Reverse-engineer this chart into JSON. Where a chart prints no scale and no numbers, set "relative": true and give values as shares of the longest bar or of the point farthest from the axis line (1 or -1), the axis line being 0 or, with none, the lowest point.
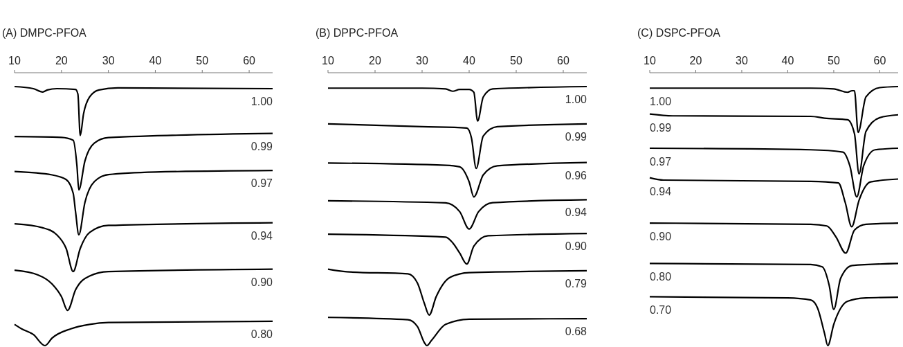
{
  "chart_data": [
    {
      "type": "line",
      "title": "(A) DMPC-PFOA",
      "relative": true,
      "xlim": [
        10,
        65
      ],
      "xticks": [
        10,
        20,
        30,
        40,
        50,
        60
      ],
      "tick_labels": "x",
      "grid": false,
      "marker": "none",
      "line_style": "solid",
      "series": [
        {
          "name": "1.00",
          "color": "#000000",
          "x": [
            10,
            14,
            16,
            17,
            19,
            23,
            23.5,
            24,
            24.7,
            26,
            28,
            32,
            65
          ],
          "values": [
            1.0,
            0.992,
            0.979,
            0.987,
            0.992,
            0.989,
            0.971,
            0.811,
            0.894,
            0.96,
            0.987,
            0.995,
            0.992
          ]
        },
        {
          "name": "0.99",
          "color": "#000000",
          "x": [
            10,
            20,
            22.5,
            23.3,
            23.7,
            25,
            27,
            30,
            65
          ],
          "values": [
            0.807,
            0.804,
            0.793,
            0.694,
            0.601,
            0.713,
            0.782,
            0.803,
            0.819
          ]
        },
        {
          "name": "0.97",
          "color": "#000000",
          "x": [
            10,
            18,
            21,
            22.5,
            23,
            23.7,
            25,
            27,
            30,
            40,
            65
          ],
          "values": [
            0.672,
            0.659,
            0.641,
            0.588,
            0.517,
            0.428,
            0.553,
            0.633,
            0.66,
            0.67,
            0.676
          ]
        },
        {
          "name": "0.94",
          "color": "#000000",
          "x": [
            10,
            16,
            19,
            21,
            22.5,
            24,
            26,
            30,
            65
          ],
          "values": [
            0.47,
            0.455,
            0.428,
            0.375,
            0.286,
            0.375,
            0.437,
            0.464,
            0.474
          ]
        },
        {
          "name": "0.90",
          "color": "#000000",
          "x": [
            10,
            15,
            18,
            20,
            21.3,
            23,
            26,
            30,
            65
          ],
          "values": [
            0.291,
            0.273,
            0.238,
            0.189,
            0.136,
            0.215,
            0.269,
            0.286,
            0.295
          ]
        },
        {
          "name": "0.80",
          "color": "#000000",
          "x": [
            10,
            11.5,
            14,
            16.5,
            18,
            22,
            26,
            30,
            65
          ],
          "values": [
            0.082,
            0.065,
            0.043,
            0,
            0.029,
            0.065,
            0.082,
            0.089,
            0.094
          ]
        }
      ]
    },
    {
      "type": "line",
      "title": "(B) DPPC-PFOA",
      "relative": true,
      "xlim": [
        10,
        65
      ],
      "xticks": [
        10,
        20,
        30,
        40,
        50,
        60
      ],
      "tick_labels": "x",
      "grid": false,
      "marker": "none",
      "line_style": "solid",
      "series": [
        {
          "name": "1.00",
          "color": "#000000",
          "x": [
            10,
            30,
            35,
            36.5,
            38,
            40,
            41,
            41.8,
            43,
            45,
            65
          ],
          "values": [
            0.994,
            0.994,
            0.991,
            0.982,
            0.989,
            0.989,
            0.978,
            0.867,
            0.96,
            0.991,
            1.0
          ]
        },
        {
          "name": "0.99",
          "color": "#000000",
          "x": [
            10,
            30,
            39.5,
            40.5,
            41.5,
            43,
            46,
            65
          ],
          "values": [
            0.856,
            0.845,
            0.84,
            0.801,
            0.684,
            0.809,
            0.845,
            0.856
          ]
        },
        {
          "name": "0.96",
          "color": "#000000",
          "x": [
            10,
            35,
            38,
            40,
            41,
            43,
            46,
            65
          ],
          "values": [
            0.705,
            0.696,
            0.69,
            0.632,
            0.574,
            0.659,
            0.694,
            0.707
          ]
        },
        {
          "name": "0.94",
          "color": "#000000",
          "x": [
            10,
            35,
            38,
            40,
            42,
            45,
            65
          ],
          "values": [
            0.559,
            0.551,
            0.517,
            0.45,
            0.517,
            0.552,
            0.563
          ]
        },
        {
          "name": "0.90",
          "color": "#000000",
          "x": [
            10,
            35,
            36.5,
            38,
            39.5,
            41,
            44,
            65
          ],
          "values": [
            0.43,
            0.419,
            0.397,
            0.357,
            0.315,
            0.384,
            0.424,
            0.433
          ]
        },
        {
          "name": "0.79",
          "color": "#000000",
          "x": [
            10,
            14,
            27,
            29,
            30.5,
            31.5,
            33,
            36,
            40,
            65
          ],
          "values": [
            0.295,
            0.285,
            0.277,
            0.242,
            0.162,
            0.118,
            0.189,
            0.264,
            0.282,
            0.289
          ]
        },
        {
          "name": "0.68",
          "color": "#000000",
          "x": [
            10,
            27,
            29,
            30.5,
            31,
            32,
            35,
            40,
            65
          ],
          "values": [
            0.109,
            0.1,
            0.074,
            0.011,
            0,
            0.02,
            0.082,
            0.102,
            0.104
          ]
        }
      ]
    },
    {
      "type": "line",
      "title": "(C) DSPC-PFOA",
      "relative": true,
      "xlim": [
        10,
        64
      ],
      "xticks": [
        10,
        20,
        30,
        40,
        50,
        60
      ],
      "tick_labels": "x",
      "grid": false,
      "marker": "none",
      "line_style": "solid",
      "series": [
        {
          "name": "1.00",
          "color": "#000000",
          "x": [
            10,
            45,
            50,
            53,
            54,
            54.5,
            55.3,
            57,
            60,
            64
          ],
          "values": [
            0.994,
            0.994,
            0.991,
            0.978,
            0.984,
            0.984,
            0.823,
            0.96,
            0.996,
            1.0
          ]
        },
        {
          "name": "0.99",
          "color": "#000000",
          "x": [
            10,
            15,
            45,
            48,
            53,
            54.5,
            55.5,
            57,
            60,
            64
          ],
          "values": [
            0.894,
            0.887,
            0.885,
            0.878,
            0.872,
            0.818,
            0.663,
            0.827,
            0.88,
            0.891
          ]
        },
        {
          "name": "0.97",
          "color": "#000000",
          "x": [
            10,
            45,
            52,
            53.5,
            55,
            56.5,
            59,
            64
          ],
          "values": [
            0.762,
            0.756,
            0.747,
            0.694,
            0.574,
            0.694,
            0.756,
            0.762
          ]
        },
        {
          "name": "0.94",
          "color": "#000000",
          "x": [
            10,
            13,
            45,
            51,
            52.5,
            53.9,
            55.5,
            58,
            64
          ],
          "values": [
            0.648,
            0.639,
            0.634,
            0.628,
            0.552,
            0.459,
            0.561,
            0.632,
            0.643
          ]
        },
        {
          "name": "0.90",
          "color": "#000000",
          "x": [
            10,
            45,
            48.5,
            50.5,
            52.6,
            54.5,
            57,
            64
          ],
          "values": [
            0.473,
            0.468,
            0.462,
            0.419,
            0.357,
            0.446,
            0.468,
            0.473
          ]
        },
        {
          "name": "0.80",
          "color": "#000000",
          "x": [
            10,
            45,
            47.5,
            49,
            50,
            51.5,
            54,
            64
          ],
          "values": [
            0.317,
            0.313,
            0.304,
            0.233,
            0.14,
            0.26,
            0.309,
            0.317
          ]
        },
        {
          "name": "0.70",
          "color": "#000000",
          "x": [
            10,
            40,
            45,
            46.5,
            48,
            48.7,
            50,
            53,
            57,
            64
          ],
          "values": [
            0.189,
            0.184,
            0.176,
            0.144,
            0.047,
            0,
            0.082,
            0.171,
            0.184,
            0.187
          ]
        }
      ]
    }
  ]
}
